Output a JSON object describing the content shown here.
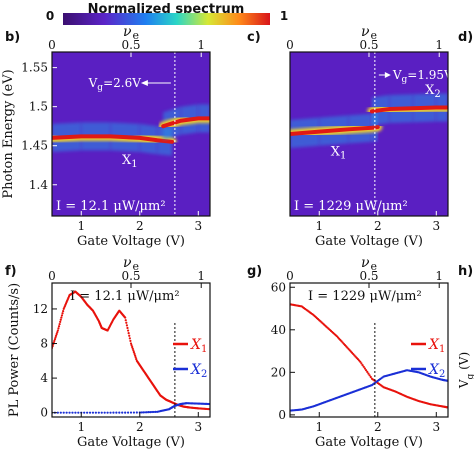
{
  "colorbar": {
    "title": "Normalized spectrum",
    "min_label": "0",
    "max_label": "1"
  },
  "panel_labels": [
    "b)",
    "c)",
    "d)",
    "f)",
    "g)",
    "h)"
  ],
  "nu_e_label": "ν",
  "nu_e_sub": "e",
  "chart_data": [
    {
      "panel": "b)",
      "type": "heatmap",
      "xlabel": "Gate Voltage (V)",
      "ylabel": "Photon Energy (eV)",
      "xlim": [
        0.5,
        3.2
      ],
      "ylim": [
        1.36,
        1.57
      ],
      "xticks": [
        "1",
        "2",
        "3"
      ],
      "yticks": [
        "1.4",
        "1.45",
        "1.5",
        "1.55"
      ],
      "top_axis": {
        "label": "ν_e",
        "ticks": [
          "0",
          "0.5",
          "1"
        ]
      },
      "annotation": "V_g=2.6V",
      "vline_x": 2.6,
      "intensity": "I = 12.1 μW/μm²",
      "peaks": [
        {
          "name": "X1",
          "x": [
            0.5,
            1.0,
            1.5,
            2.0,
            2.3,
            2.55
          ],
          "y": [
            1.46,
            1.462,
            1.462,
            1.46,
            1.457,
            1.455
          ]
        },
        {
          "name": "X2",
          "x": [
            2.4,
            2.7,
            3.0,
            3.2
          ],
          "y": [
            1.475,
            1.482,
            1.485,
            1.485
          ]
        }
      ]
    },
    {
      "panel": "c)",
      "type": "heatmap",
      "xlabel": "Gate Voltage (V)",
      "xlim": [
        0.5,
        3.2
      ],
      "ylim": [
        1.36,
        1.57
      ],
      "xticks": [
        "1",
        "2",
        "3"
      ],
      "top_axis": {
        "label": "ν_e",
        "ticks": [
          "0",
          "0.5",
          "1"
        ]
      },
      "annotation": "V_g=1.95V",
      "vline_x": 1.95,
      "intensity": "I = 1229 μW/μm²",
      "peaks": [
        {
          "name": "X1",
          "x": [
            0.5,
            1.0,
            1.5,
            1.9,
            2.0
          ],
          "y": [
            1.465,
            1.468,
            1.471,
            1.473,
            1.474
          ]
        },
        {
          "name": "X2",
          "x": [
            1.9,
            2.2,
            2.6,
            3.0,
            3.2
          ],
          "y": [
            1.494,
            1.497,
            1.498,
            1.499,
            1.499
          ]
        }
      ]
    },
    {
      "panel": "f)",
      "type": "line",
      "xlabel": "Gate Voltage (V)",
      "ylabel": "PL Power (Counts/s)",
      "xlim": [
        0.5,
        3.2
      ],
      "ylim": [
        -0.5,
        15
      ],
      "xticks": [
        "1",
        "2",
        "3"
      ],
      "yticks": [
        "0",
        "4",
        "8",
        "12"
      ],
      "top_axis": {
        "label": "ν_e",
        "ticks": [
          "0",
          "0.5",
          "1"
        ]
      },
      "intensity": "I = 12.1 μW/μm²",
      "vline_x": 2.6,
      "series": [
        {
          "name": "X1",
          "color": "#e8120c",
          "x": [
            0.5,
            0.6,
            0.7,
            0.8,
            0.9,
            1.0,
            1.1,
            1.2,
            1.3,
            1.35,
            1.45,
            1.55,
            1.65,
            1.75,
            1.85,
            1.95,
            2.05,
            2.15,
            2.25,
            2.35,
            2.45,
            2.55,
            2.65,
            2.75,
            2.85,
            3.0,
            3.2
          ],
          "y": [
            7.5,
            9.5,
            12.0,
            13.6,
            14.0,
            13.4,
            12.5,
            11.8,
            10.6,
            9.8,
            9.5,
            10.8,
            11.8,
            11.0,
            8.0,
            6.0,
            5.0,
            4.0,
            3.0,
            2.0,
            1.5,
            1.2,
            0.9,
            0.7,
            0.6,
            0.5,
            0.4
          ]
        },
        {
          "name": "X2",
          "color": "#1a2fd6",
          "x": [
            0.5,
            1.0,
            1.5,
            2.0,
            2.3,
            2.5,
            2.6,
            2.7,
            2.8,
            3.0,
            3.2
          ],
          "y": [
            0.0,
            0.0,
            0.0,
            0.02,
            0.1,
            0.4,
            0.8,
            1.0,
            1.1,
            1.05,
            1.0
          ]
        }
      ]
    },
    {
      "panel": "g)",
      "type": "line",
      "xlabel": "Gate Voltage (V)",
      "xlim": [
        0.5,
        3.2
      ],
      "ylim": [
        -1,
        62
      ],
      "xticks": [
        "1",
        "2",
        "3"
      ],
      "yticks": [
        "0",
        "20",
        "40",
        "60"
      ],
      "top_axis": {
        "label": "ν_e",
        "ticks": [
          "0",
          "0.5",
          "1"
        ]
      },
      "intensity": "I = 1229 μW/μm²",
      "vline_x": 1.95,
      "series": [
        {
          "name": "X1",
          "color": "#e8120c",
          "x": [
            0.5,
            0.7,
            0.9,
            1.1,
            1.3,
            1.5,
            1.7,
            1.9,
            2.1,
            2.3,
            2.5,
            2.7,
            2.9,
            3.1,
            3.2
          ],
          "y": [
            52,
            51,
            47,
            42,
            37,
            31,
            25,
            17,
            13,
            11,
            8.5,
            6.5,
            5.0,
            4.0,
            3.5
          ]
        },
        {
          "name": "X2",
          "color": "#1a2fd6",
          "x": [
            0.5,
            0.7,
            0.9,
            1.1,
            1.3,
            1.5,
            1.7,
            1.9,
            2.1,
            2.3,
            2.5,
            2.7,
            2.9,
            3.1,
            3.2
          ],
          "y": [
            2,
            2.5,
            4,
            6,
            8,
            10,
            12,
            14,
            18,
            19.5,
            21,
            20,
            18,
            16.5,
            16
          ]
        }
      ]
    }
  ],
  "partial_panel_labels": {
    "h_ylabel": "V_g (V)"
  }
}
